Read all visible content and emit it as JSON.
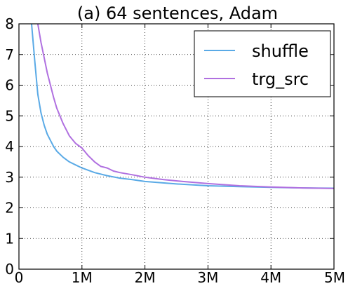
{
  "chart_data": {
    "type": "line",
    "title": "(a) 64 sentences, Adam",
    "xlabel": "",
    "ylabel": "",
    "xlim": [
      0,
      5000000
    ],
    "ylim": [
      0,
      8
    ],
    "x_ticks": [
      0,
      1000000,
      2000000,
      3000000,
      4000000,
      5000000
    ],
    "x_tick_labels": [
      "0",
      "1M",
      "2M",
      "3M",
      "4M",
      "5M"
    ],
    "y_ticks": [
      0,
      1,
      2,
      3,
      4,
      5,
      6,
      7,
      8
    ],
    "y_tick_labels": [
      "0",
      "1",
      "2",
      "3",
      "4",
      "5",
      "6",
      "7",
      "8"
    ],
    "grid": "dotted",
    "legend_position": "top-right",
    "series": [
      {
        "name": "shuffle",
        "color": "#5aaae6",
        "x": [
          200000,
          250000,
          300000,
          350000,
          400000,
          450000,
          500000,
          550000,
          600000,
          700000,
          800000,
          900000,
          1000000,
          1200000,
          1400000,
          1600000,
          1800000,
          2000000,
          2500000,
          3000000,
          3500000,
          4000000,
          4500000,
          5000000
        ],
        "y": [
          8.0,
          6.8,
          5.7,
          5.1,
          4.7,
          4.4,
          4.2,
          4.0,
          3.85,
          3.65,
          3.5,
          3.4,
          3.3,
          3.15,
          3.05,
          2.97,
          2.92,
          2.86,
          2.78,
          2.72,
          2.69,
          2.67,
          2.65,
          2.64
        ]
      },
      {
        "name": "trg_src",
        "color": "#b070e0",
        "x": [
          300000,
          350000,
          400000,
          450000,
          500000,
          550000,
          600000,
          700000,
          800000,
          900000,
          1000000,
          1100000,
          1200000,
          1300000,
          1400000,
          1500000,
          1600000,
          1800000,
          2000000,
          2300000,
          2600000,
          3000000,
          3500000,
          4000000,
          4500000,
          5000000
        ],
        "y": [
          8.0,
          7.4,
          6.9,
          6.4,
          6.0,
          5.6,
          5.25,
          4.75,
          4.35,
          4.1,
          3.95,
          3.7,
          3.5,
          3.35,
          3.3,
          3.2,
          3.15,
          3.08,
          3.0,
          2.92,
          2.86,
          2.79,
          2.72,
          2.68,
          2.65,
          2.63
        ]
      }
    ]
  }
}
